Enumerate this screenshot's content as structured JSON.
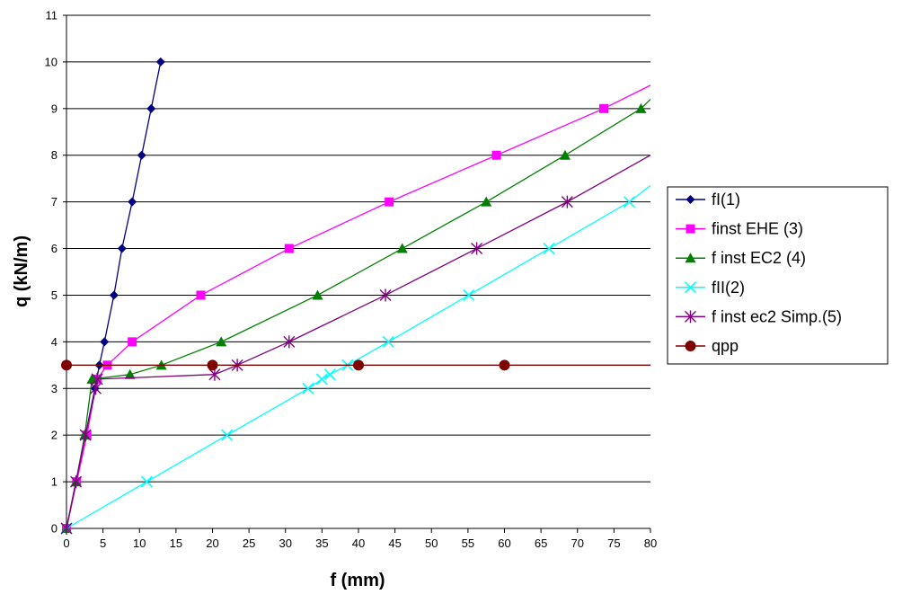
{
  "chart_data": {
    "type": "line",
    "title": "",
    "xlabel": "f (mm)",
    "ylabel": "q (kN/m)",
    "xlim": [
      0,
      80
    ],
    "ylim": [
      0,
      11
    ],
    "xticks": [
      0,
      5,
      10,
      15,
      20,
      25,
      30,
      35,
      40,
      45,
      50,
      55,
      60,
      65,
      70,
      75,
      80
    ],
    "yticks": [
      0,
      1,
      2,
      3,
      4,
      5,
      6,
      7,
      8,
      9,
      10,
      11
    ],
    "grid": "horizontal",
    "legend_position": "right",
    "series": [
      {
        "name": "fI(1)",
        "color": "#000080",
        "marker": "diamond",
        "points": [
          [
            0,
            0
          ],
          [
            1.3,
            1
          ],
          [
            2.6,
            2
          ],
          [
            3.9,
            3
          ],
          [
            4.5,
            3.5
          ],
          [
            5.2,
            4
          ],
          [
            6.5,
            5
          ],
          [
            7.6,
            6
          ],
          [
            9.0,
            7
          ],
          [
            10.3,
            8
          ],
          [
            11.6,
            9
          ],
          [
            12.9,
            10
          ]
        ]
      },
      {
        "name": "finst EHE (3)",
        "color": "#ff00ff",
        "marker": "square",
        "points": [
          [
            0,
            0
          ],
          [
            1.4,
            1
          ],
          [
            2.8,
            2
          ],
          [
            4.2,
            3.2
          ],
          [
            5.6,
            3.5
          ],
          [
            9.0,
            4
          ],
          [
            18.4,
            5
          ],
          [
            30.5,
            6
          ],
          [
            44.2,
            7
          ],
          [
            58.9,
            8
          ],
          [
            73.6,
            9
          ],
          [
            80,
            9.5
          ]
        ]
      },
      {
        "name": "f inst EC2 (4)",
        "color": "#008000",
        "marker": "triangle",
        "points": [
          [
            0,
            0
          ],
          [
            1.3,
            1
          ],
          [
            2.5,
            2
          ],
          [
            3.5,
            3.2
          ],
          [
            8.7,
            3.3
          ],
          [
            13.0,
            3.5
          ],
          [
            21.2,
            4
          ],
          [
            34.4,
            5
          ],
          [
            46.0,
            6
          ],
          [
            57.5,
            7
          ],
          [
            68.3,
            8
          ],
          [
            78.7,
            9
          ],
          [
            80,
            9.2
          ]
        ]
      },
      {
        "name": "fII(2)",
        "color": "#00ffff",
        "marker": "x",
        "points": [
          [
            0,
            0
          ],
          [
            11.0,
            1
          ],
          [
            22.0,
            2
          ],
          [
            33.1,
            3
          ],
          [
            35.0,
            3.2
          ],
          [
            36.1,
            3.3
          ],
          [
            38.5,
            3.5
          ],
          [
            44.1,
            4
          ],
          [
            55.1,
            5
          ],
          [
            66.1,
            6
          ],
          [
            77.1,
            7
          ],
          [
            80,
            7.35
          ]
        ]
      },
      {
        "name": "f inst ec2 Simp.(5)",
        "color": "#800080",
        "marker": "asterisk",
        "points": [
          [
            0,
            0
          ],
          [
            1.3,
            1
          ],
          [
            2.6,
            2
          ],
          [
            4.0,
            3.0
          ],
          [
            4.2,
            3.2
          ],
          [
            20.3,
            3.3
          ],
          [
            23.4,
            3.5
          ],
          [
            30.5,
            4
          ],
          [
            43.7,
            5
          ],
          [
            56.2,
            6
          ],
          [
            68.6,
            7
          ],
          [
            80,
            8
          ]
        ]
      },
      {
        "name": "qpp",
        "color": "#800000",
        "marker": "circle",
        "points": [
          [
            0,
            3.5
          ],
          [
            20,
            3.5
          ],
          [
            40,
            3.5
          ],
          [
            60,
            3.5
          ],
          [
            80,
            3.5
          ]
        ]
      }
    ]
  }
}
